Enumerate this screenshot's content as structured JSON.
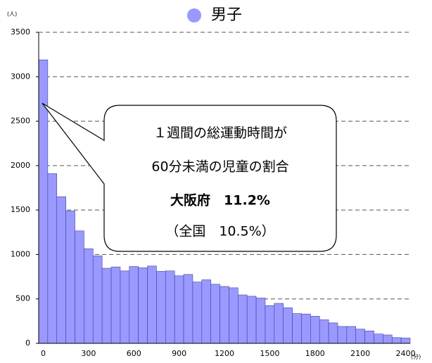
{
  "chart_data": {
    "type": "bar",
    "title": "男子",
    "y_unit": "(人)",
    "x_unit": "(分)",
    "categories": [
      "0",
      null,
      null,
      null,
      null,
      "300",
      null,
      null,
      null,
      null,
      "600",
      null,
      null,
      null,
      null,
      "900",
      null,
      null,
      null,
      null,
      "1200",
      null,
      null,
      null,
      null,
      "1500",
      null,
      null,
      null,
      null,
      "1800",
      null,
      null,
      null,
      null,
      "2100",
      null,
      null,
      null,
      null,
      "2400"
    ],
    "values": [
      3190,
      1910,
      1650,
      1490,
      1265,
      1065,
      985,
      845,
      860,
      815,
      865,
      850,
      870,
      810,
      815,
      760,
      775,
      690,
      715,
      665,
      640,
      625,
      545,
      530,
      510,
      425,
      450,
      400,
      335,
      330,
      305,
      265,
      230,
      190,
      190,
      160,
      140,
      105,
      95,
      65,
      60
    ],
    "color": "#9999ff",
    "ylim": [
      0,
      3500
    ],
    "yticks": [
      0,
      500,
      1000,
      1500,
      2000,
      2500,
      3000,
      3500
    ],
    "grid": true,
    "annotation": [
      "１週間の総運動時間が",
      "60分未満の児童の割合",
      "大阪府　11.2%",
      "（全国　10.5%）"
    ]
  }
}
